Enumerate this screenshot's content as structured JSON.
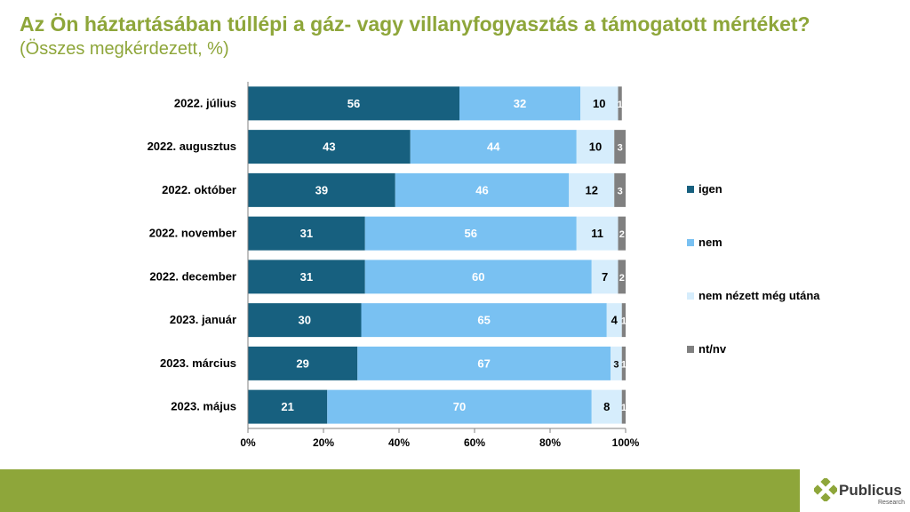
{
  "title": "Az Ön háztartásában túllépi a gáz- vagy villanyfogyasztás a támogatott mértéket?",
  "subtitle": "(Összes megkérdezett, %)",
  "logo": {
    "name": "Publicus",
    "sub": "Research"
  },
  "colors": {
    "igen": "#17607F",
    "nem": "#79C1F2",
    "nem_nezett": "#D6EDFC",
    "ntnv": "#808080",
    "accent": "#8EA63A"
  },
  "chart_data": {
    "type": "bar",
    "orientation": "horizontal",
    "stacked": true,
    "categories": [
      "2022. július",
      "2022. augusztus",
      "2022. október",
      "2022. november",
      "2022. december",
      "2023. január",
      "2023. március",
      "2023. május"
    ],
    "series": [
      {
        "name": "igen",
        "values": [
          56,
          43,
          39,
          31,
          31,
          30,
          29,
          21
        ]
      },
      {
        "name": "nem",
        "values": [
          32,
          44,
          46,
          56,
          60,
          65,
          67,
          70
        ]
      },
      {
        "name": "nem nézett még utána",
        "values": [
          10,
          10,
          12,
          11,
          7,
          4,
          3,
          8
        ]
      },
      {
        "name": "nt/nv",
        "values": [
          1,
          3,
          3,
          2,
          2,
          1,
          1,
          1
        ]
      }
    ],
    "xlim": [
      0,
      100
    ],
    "x_ticks": [
      "0%",
      "20%",
      "40%",
      "60%",
      "80%",
      "100%"
    ],
    "legend_position": "right",
    "grid": false
  }
}
